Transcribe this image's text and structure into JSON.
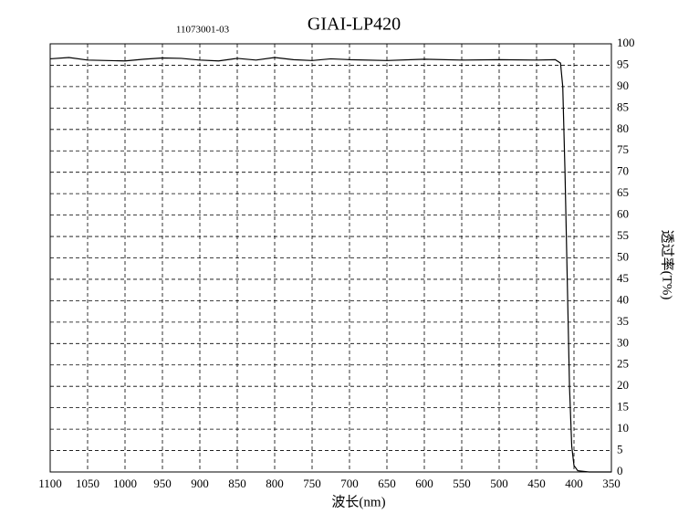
{
  "chart_data": {
    "type": "line",
    "title": "GIAI-LP420",
    "subtitle": "11073001-03",
    "x_label": "波长(nm)",
    "y_label": "透过率(T%)",
    "x": [
      1100,
      1075,
      1050,
      1000,
      975,
      950,
      925,
      900,
      875,
      850,
      825,
      800,
      775,
      750,
      725,
      700,
      650,
      600,
      550,
      500,
      450,
      425,
      418,
      415,
      412,
      409,
      406,
      403,
      400,
      395,
      380,
      350
    ],
    "values": [
      96.5,
      96.8,
      96.2,
      96.0,
      96.4,
      96.7,
      96.6,
      96.2,
      96.0,
      96.6,
      96.2,
      96.8,
      96.3,
      96.1,
      96.5,
      96.3,
      96.1,
      96.4,
      96.2,
      96.3,
      96.2,
      96.3,
      95.5,
      90,
      70,
      45,
      20,
      6,
      1.5,
      0.3,
      0,
      0
    ],
    "color": "#000000",
    "xlim": [
      350,
      1100
    ],
    "xticks": [
      350,
      400,
      450,
      500,
      550,
      600,
      650,
      700,
      750,
      800,
      850,
      900,
      950,
      1000,
      1050,
      1100
    ],
    "ylim": [
      0,
      100
    ],
    "yticks": [
      0,
      5,
      10,
      15,
      20,
      25,
      30,
      35,
      40,
      45,
      50,
      55,
      60,
      65,
      70,
      75,
      80,
      85,
      90,
      95,
      100
    ],
    "grid": true
  }
}
